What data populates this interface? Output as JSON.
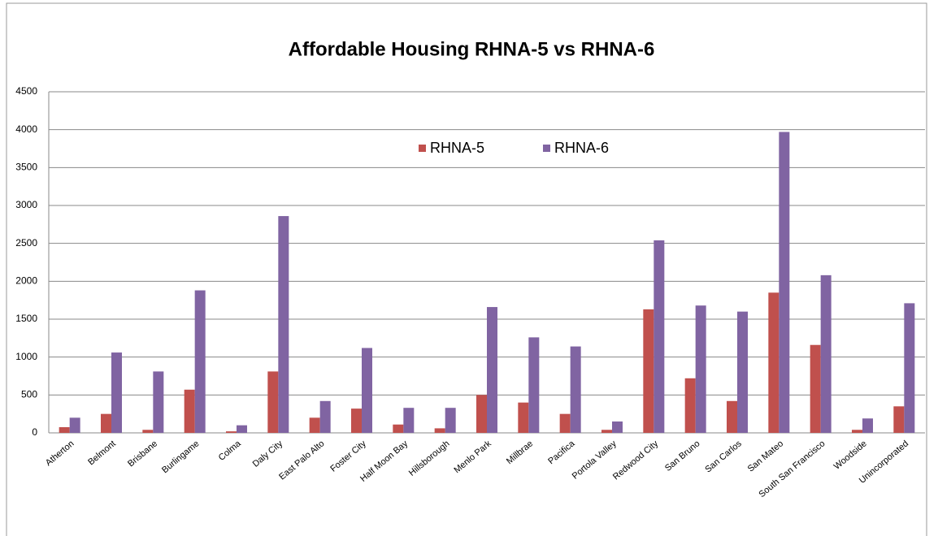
{
  "chart_data": {
    "type": "bar",
    "title": "Affordable Housing RHNA-5 vs RHNA-6",
    "categories": [
      "Atherton",
      "Belmont",
      "Brisbane",
      "Burlingame",
      "Colma",
      "Daly City",
      "East Palo Alto",
      "Foster City",
      "Half Moon Bay",
      "Hillsborough",
      "Menlo Park",
      "Millbrae",
      "Pacifica",
      "Portola Valley",
      "Redwood City",
      "San Bruno",
      "San Carlos",
      "San Mateo",
      "South San Francisco",
      "Woodside",
      "Unincorporated"
    ],
    "series": [
      {
        "name": "RHNA-5",
        "color": "#c0504d",
        "values": [
          75,
          250,
          40,
          570,
          20,
          810,
          200,
          320,
          110,
          60,
          500,
          400,
          250,
          40,
          1630,
          720,
          420,
          1850,
          1160,
          40,
          350
        ]
      },
      {
        "name": "RHNA-6",
        "color": "#8064a2",
        "values": [
          200,
          1060,
          810,
          1880,
          100,
          2860,
          420,
          1120,
          330,
          330,
          1660,
          1260,
          1140,
          150,
          2540,
          1680,
          1600,
          3970,
          2080,
          190,
          1710
        ]
      }
    ],
    "ylim": [
      0,
      4500
    ],
    "yticks": [
      0,
      500,
      1000,
      1500,
      2000,
      2500,
      3000,
      3500,
      4000,
      4500
    ],
    "grid": true,
    "legend": "top"
  }
}
